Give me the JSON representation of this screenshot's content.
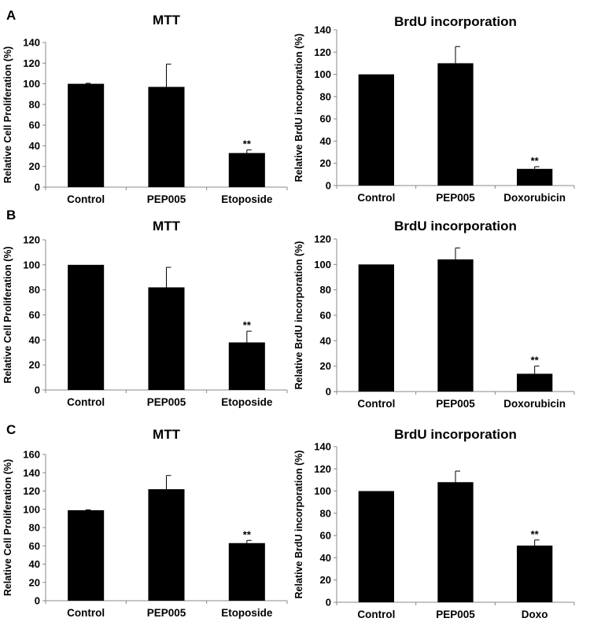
{
  "panels": [
    {
      "label": "A"
    },
    {
      "label": "B"
    },
    {
      "label": "C"
    }
  ],
  "chart_data": [
    {
      "type": "bar",
      "panel": "A",
      "title": "MTT",
      "ylabel": "Relative Cell Proliferation (%)",
      "xlabel": "",
      "categories": [
        "Control",
        "PEP005",
        "Etoposide"
      ],
      "values": [
        100,
        97,
        33
      ],
      "errors": [
        0.5,
        22,
        3
      ],
      "annotations": [
        "",
        "",
        "**"
      ],
      "ylim": [
        0,
        140
      ],
      "yticks": [
        0,
        20,
        40,
        60,
        80,
        100,
        120,
        140
      ],
      "bar_color": "#000000"
    },
    {
      "type": "bar",
      "panel": "A",
      "title": "BrdU incorporation",
      "ylabel": "Relative BrdU incorporation (%)",
      "xlabel": "",
      "categories": [
        "Control",
        "PEP005",
        "Doxorubicin"
      ],
      "values": [
        100,
        110,
        15
      ],
      "errors": [
        0,
        15,
        2
      ],
      "annotations": [
        "",
        "",
        "**"
      ],
      "ylim": [
        0,
        140
      ],
      "yticks": [
        0,
        20,
        40,
        60,
        80,
        100,
        120,
        140
      ],
      "bar_color": "#000000"
    },
    {
      "type": "bar",
      "panel": "B",
      "title": "MTT",
      "ylabel": "Relative Cell Proliferation (%)",
      "xlabel": "",
      "categories": [
        "Control",
        "PEP005",
        "Etoposide"
      ],
      "values": [
        100,
        82,
        38
      ],
      "errors": [
        0,
        16,
        9
      ],
      "annotations": [
        "",
        "",
        "**"
      ],
      "ylim": [
        0,
        120
      ],
      "yticks": [
        0,
        20,
        40,
        60,
        80,
        100,
        120
      ],
      "bar_color": "#000000"
    },
    {
      "type": "bar",
      "panel": "B",
      "title": "BrdU incorporation",
      "ylabel": "Relative BrdU incorporation (%)",
      "xlabel": "",
      "categories": [
        "Control",
        "PEP005",
        "Doxorubicin"
      ],
      "values": [
        100,
        104,
        14
      ],
      "errors": [
        0,
        9,
        6
      ],
      "annotations": [
        "",
        "",
        "**"
      ],
      "ylim": [
        0,
        120
      ],
      "yticks": [
        0,
        20,
        40,
        60,
        80,
        100,
        120
      ],
      "bar_color": "#000000"
    },
    {
      "type": "bar",
      "panel": "C",
      "title": "MTT",
      "ylabel": "Relative Cell Proliferation (%)",
      "xlabel": "",
      "categories": [
        "Control",
        "PEP005",
        "Etoposide"
      ],
      "values": [
        99,
        122,
        63
      ],
      "errors": [
        0.5,
        15,
        3
      ],
      "annotations": [
        "",
        "",
        "**"
      ],
      "ylim": [
        0,
        160
      ],
      "yticks": [
        0,
        20,
        40,
        60,
        80,
        100,
        120,
        140,
        160
      ],
      "bar_color": "#000000"
    },
    {
      "type": "bar",
      "panel": "C",
      "title": "BrdU incorporation",
      "ylabel": "Relative BrdU incorporation (%)",
      "xlabel": "",
      "categories": [
        "Control",
        "PEP005",
        "Doxo"
      ],
      "values": [
        100,
        108,
        51
      ],
      "errors": [
        0,
        10,
        5
      ],
      "annotations": [
        "",
        "",
        "**"
      ],
      "ylim": [
        0,
        140
      ],
      "yticks": [
        0,
        20,
        40,
        60,
        80,
        100,
        120,
        140
      ],
      "bar_color": "#000000"
    }
  ]
}
